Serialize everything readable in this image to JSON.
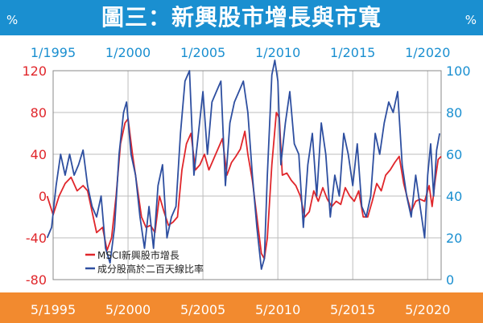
{
  "header": {
    "title": "圖三：新興股市增長與市寬",
    "unit_left": "%",
    "unit_right": "%"
  },
  "colors": {
    "header_bg": "#1a8fd0",
    "footer_bg": "#f28a2f",
    "red": "#e0262b",
    "blue": "#2e4fa0",
    "tick_red": "#e0262b",
    "tick_blue": "#1a8fd0"
  },
  "chart_data": {
    "type": "line",
    "title": "圖三：新興股市增長與市寬",
    "top_x_ticks": [
      "1/1995",
      "1/2000",
      "1/2005",
      "1/2010",
      "1/2015",
      "1/2020"
    ],
    "bottom_x_ticks": [
      "5/1995",
      "5/2000",
      "5/2005",
      "5/2010",
      "5/2015",
      "5/2020"
    ],
    "x_range": [
      1995,
      2020.9
    ],
    "ylim_left": [
      -80,
      120
    ],
    "yticks_left": [
      -80,
      -40,
      0,
      40,
      80,
      120
    ],
    "ylim_right": [
      0,
      100
    ],
    "yticks_right": [
      0,
      20,
      40,
      60,
      80,
      100
    ],
    "grid": true,
    "legend_position": "bottom-left",
    "series": [
      {
        "name": "MSCI新興股市增長",
        "axis": "left",
        "points": [
          [
            1994.6,
            0
          ],
          [
            1995.0,
            -18
          ],
          [
            1995.4,
            0
          ],
          [
            1995.8,
            12
          ],
          [
            1996.2,
            18
          ],
          [
            1996.6,
            5
          ],
          [
            1997.0,
            10
          ],
          [
            1997.3,
            5
          ],
          [
            1997.6,
            -15
          ],
          [
            1997.9,
            -35
          ],
          [
            1998.3,
            -30
          ],
          [
            1998.6,
            -52
          ],
          [
            1998.9,
            -40
          ],
          [
            1999.2,
            0
          ],
          [
            1999.5,
            50
          ],
          [
            1999.8,
            70
          ],
          [
            2000.0,
            74
          ],
          [
            2000.3,
            40
          ],
          [
            2000.6,
            10
          ],
          [
            2000.9,
            -20
          ],
          [
            2001.2,
            -30
          ],
          [
            2001.5,
            -28
          ],
          [
            2001.8,
            -35
          ],
          [
            2002.1,
            0
          ],
          [
            2002.4,
            -15
          ],
          [
            2002.7,
            -28
          ],
          [
            2003.0,
            -25
          ],
          [
            2003.3,
            -20
          ],
          [
            2003.6,
            25
          ],
          [
            2003.9,
            50
          ],
          [
            2004.2,
            60
          ],
          [
            2004.5,
            25
          ],
          [
            2004.8,
            30
          ],
          [
            2005.1,
            40
          ],
          [
            2005.4,
            25
          ],
          [
            2005.7,
            35
          ],
          [
            2006.0,
            45
          ],
          [
            2006.3,
            55
          ],
          [
            2006.6,
            20
          ],
          [
            2006.9,
            32
          ],
          [
            2007.2,
            38
          ],
          [
            2007.5,
            45
          ],
          [
            2007.8,
            62
          ],
          [
            2008.0,
            40
          ],
          [
            2008.3,
            15
          ],
          [
            2008.6,
            -20
          ],
          [
            2008.9,
            -55
          ],
          [
            2009.1,
            -60
          ],
          [
            2009.3,
            -40
          ],
          [
            2009.6,
            30
          ],
          [
            2009.9,
            80
          ],
          [
            2010.1,
            75
          ],
          [
            2010.3,
            20
          ],
          [
            2010.6,
            22
          ],
          [
            2010.9,
            15
          ],
          [
            2011.2,
            10
          ],
          [
            2011.5,
            0
          ],
          [
            2011.8,
            -20
          ],
          [
            2012.1,
            -15
          ],
          [
            2012.4,
            5
          ],
          [
            2012.7,
            -5
          ],
          [
            2013.0,
            8
          ],
          [
            2013.3,
            -3
          ],
          [
            2013.6,
            -10
          ],
          [
            2013.9,
            -5
          ],
          [
            2014.2,
            -8
          ],
          [
            2014.5,
            8
          ],
          [
            2014.8,
            0
          ],
          [
            2015.1,
            -5
          ],
          [
            2015.4,
            5
          ],
          [
            2015.7,
            -20
          ],
          [
            2016.0,
            -20
          ],
          [
            2016.3,
            -5
          ],
          [
            2016.6,
            12
          ],
          [
            2016.9,
            5
          ],
          [
            2017.2,
            20
          ],
          [
            2017.5,
            25
          ],
          [
            2017.8,
            32
          ],
          [
            2018.1,
            38
          ],
          [
            2018.4,
            12
          ],
          [
            2018.7,
            -5
          ],
          [
            2018.9,
            -15
          ],
          [
            2019.2,
            -5
          ],
          [
            2019.5,
            -3
          ],
          [
            2019.8,
            -5
          ],
          [
            2020.1,
            10
          ],
          [
            2020.3,
            -10
          ],
          [
            2020.5,
            15
          ],
          [
            2020.7,
            35
          ],
          [
            2020.9,
            38
          ]
        ]
      },
      {
        "name": "成分股高於二百天線比率",
        "axis": "right",
        "points": [
          [
            1994.6,
            20
          ],
          [
            1994.9,
            25
          ],
          [
            1995.2,
            45
          ],
          [
            1995.5,
            60
          ],
          [
            1995.8,
            50
          ],
          [
            1996.1,
            60
          ],
          [
            1996.4,
            50
          ],
          [
            1996.7,
            55
          ],
          [
            1997.0,
            62
          ],
          [
            1997.3,
            45
          ],
          [
            1997.6,
            35
          ],
          [
            1997.9,
            30
          ],
          [
            1998.2,
            40
          ],
          [
            1998.5,
            15
          ],
          [
            1998.8,
            8
          ],
          [
            1999.1,
            25
          ],
          [
            1999.4,
            60
          ],
          [
            1999.7,
            80
          ],
          [
            1999.9,
            85
          ],
          [
            2000.2,
            60
          ],
          [
            2000.5,
            50
          ],
          [
            2000.8,
            30
          ],
          [
            2001.1,
            15
          ],
          [
            2001.4,
            35
          ],
          [
            2001.7,
            15
          ],
          [
            2002.0,
            45
          ],
          [
            2002.3,
            55
          ],
          [
            2002.6,
            20
          ],
          [
            2002.9,
            30
          ],
          [
            2003.2,
            35
          ],
          [
            2003.5,
            70
          ],
          [
            2003.8,
            95
          ],
          [
            2004.1,
            100
          ],
          [
            2004.4,
            50
          ],
          [
            2004.7,
            70
          ],
          [
            2005.0,
            90
          ],
          [
            2005.3,
            60
          ],
          [
            2005.6,
            85
          ],
          [
            2005.9,
            90
          ],
          [
            2006.2,
            95
          ],
          [
            2006.5,
            45
          ],
          [
            2006.8,
            75
          ],
          [
            2007.1,
            85
          ],
          [
            2007.4,
            90
          ],
          [
            2007.7,
            95
          ],
          [
            2008.0,
            80
          ],
          [
            2008.3,
            50
          ],
          [
            2008.6,
            25
          ],
          [
            2008.9,
            5
          ],
          [
            2009.1,
            10
          ],
          [
            2009.3,
            50
          ],
          [
            2009.6,
            98
          ],
          [
            2009.8,
            105
          ],
          [
            2010.0,
            95
          ],
          [
            2010.2,
            55
          ],
          [
            2010.5,
            75
          ],
          [
            2010.8,
            90
          ],
          [
            2011.1,
            65
          ],
          [
            2011.4,
            60
          ],
          [
            2011.7,
            25
          ],
          [
            2012.0,
            55
          ],
          [
            2012.3,
            70
          ],
          [
            2012.6,
            40
          ],
          [
            2012.9,
            75
          ],
          [
            2013.2,
            60
          ],
          [
            2013.5,
            30
          ],
          [
            2013.8,
            50
          ],
          [
            2014.1,
            40
          ],
          [
            2014.4,
            70
          ],
          [
            2014.7,
            60
          ],
          [
            2015.0,
            45
          ],
          [
            2015.3,
            65
          ],
          [
            2015.6,
            35
          ],
          [
            2015.9,
            30
          ],
          [
            2016.2,
            40
          ],
          [
            2016.5,
            70
          ],
          [
            2016.8,
            60
          ],
          [
            2017.1,
            75
          ],
          [
            2017.4,
            85
          ],
          [
            2017.7,
            80
          ],
          [
            2018.0,
            90
          ],
          [
            2018.3,
            55
          ],
          [
            2018.6,
            40
          ],
          [
            2018.9,
            30
          ],
          [
            2019.2,
            50
          ],
          [
            2019.5,
            35
          ],
          [
            2019.8,
            20
          ],
          [
            2020.0,
            50
          ],
          [
            2020.2,
            65
          ],
          [
            2020.4,
            40
          ],
          [
            2020.6,
            62
          ],
          [
            2020.8,
            70
          ]
        ]
      }
    ]
  }
}
